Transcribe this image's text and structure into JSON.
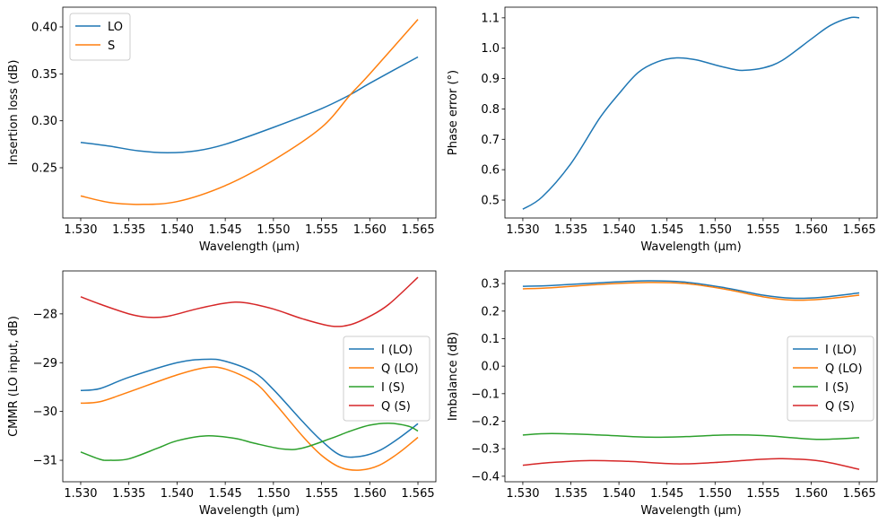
{
  "chart_data": [
    {
      "type": "line",
      "xlabel": "Wavelength (µm)",
      "ylabel": "Insertion loss (dB)",
      "xlim": [
        1.52814,
        1.56686
      ],
      "ylim": [
        0.1965,
        0.421
      ],
      "xticks": [
        "1.530",
        "1.535",
        "1.540",
        "1.545",
        "1.550",
        "1.555",
        "1.560",
        "1.565"
      ],
      "yticks": [
        "0.25",
        "0.30",
        "0.35",
        "0.40"
      ],
      "grid": false,
      "legend": "top-left",
      "series": [
        {
          "name": "LO",
          "color": "#1f77b4",
          "x": [
            1.53,
            1.533,
            1.536,
            1.539,
            1.542,
            1.545,
            1.55,
            1.555,
            1.558,
            1.56,
            1.565
          ],
          "y": [
            0.277,
            0.273,
            0.268,
            0.266,
            0.268,
            0.275,
            0.293,
            0.313,
            0.328,
            0.34,
            0.368
          ]
        },
        {
          "name": "S",
          "color": "#ff7f0e",
          "x": [
            1.53,
            1.533,
            1.536,
            1.54,
            1.545,
            1.55,
            1.555,
            1.558,
            1.56,
            1.565
          ],
          "y": [
            0.22,
            0.213,
            0.211,
            0.214,
            0.231,
            0.258,
            0.293,
            0.328,
            0.35,
            0.408
          ]
        }
      ]
    },
    {
      "type": "line",
      "xlabel": "Wavelength (µm)",
      "ylabel": "Phase error (°)",
      "xlim": [
        1.52814,
        1.56686
      ],
      "ylim": [
        0.441,
        1.135
      ],
      "xticks": [
        "1.530",
        "1.535",
        "1.540",
        "1.545",
        "1.550",
        "1.555",
        "1.560",
        "1.565"
      ],
      "yticks": [
        "0.5",
        "0.6",
        "0.7",
        "0.8",
        "0.9",
        "1.0",
        "1.1"
      ],
      "grid": false,
      "series": [
        {
          "color": "#1f77b4",
          "x": [
            1.53,
            1.532,
            1.535,
            1.538,
            1.54,
            1.542,
            1.544,
            1.546,
            1.548,
            1.55,
            1.552,
            1.553,
            1.555,
            1.557,
            1.56,
            1.562,
            1.564,
            1.565
          ],
          "y": [
            0.47,
            0.51,
            0.62,
            0.77,
            0.85,
            0.92,
            0.955,
            0.968,
            0.962,
            0.945,
            0.93,
            0.927,
            0.935,
            0.96,
            1.03,
            1.075,
            1.1,
            1.1
          ]
        }
      ]
    },
    {
      "type": "line",
      "xlabel": "Wavelength (µm)",
      "ylabel": "CMMR (LO input, dB)",
      "xlim": [
        1.52814,
        1.56686
      ],
      "ylim": [
        -31.44,
        -27.12
      ],
      "xticks": [
        "1.530",
        "1.535",
        "1.540",
        "1.545",
        "1.550",
        "1.555",
        "1.560",
        "1.565"
      ],
      "yticks": [
        "−31",
        "−30",
        "−29",
        "−28"
      ],
      "ytick_values": [
        -31,
        -30,
        -29,
        -28
      ],
      "grid": false,
      "legend": "center-right",
      "series": [
        {
          "name": "I (LO)",
          "color": "#1f77b4",
          "x": [
            1.53,
            1.532,
            1.535,
            1.54,
            1.543,
            1.545,
            1.548,
            1.55,
            1.553,
            1.555,
            1.557,
            1.559,
            1.561,
            1.563,
            1.565
          ],
          "y": [
            -29.57,
            -29.53,
            -29.3,
            -29.0,
            -28.93,
            -28.97,
            -29.2,
            -29.55,
            -30.2,
            -30.6,
            -30.9,
            -30.92,
            -30.8,
            -30.55,
            -30.25
          ]
        },
        {
          "name": "Q (LO)",
          "color": "#ff7f0e",
          "x": [
            1.53,
            1.532,
            1.535,
            1.54,
            1.543,
            1.545,
            1.548,
            1.55,
            1.553,
            1.555,
            1.557,
            1.559,
            1.561,
            1.563,
            1.565
          ],
          "y": [
            -29.83,
            -29.8,
            -29.6,
            -29.25,
            -29.1,
            -29.13,
            -29.4,
            -29.8,
            -30.5,
            -30.9,
            -31.15,
            -31.2,
            -31.1,
            -30.85,
            -30.53
          ]
        },
        {
          "name": "I (S)",
          "color": "#2ca02c",
          "x": [
            1.53,
            1.532,
            1.533,
            1.535,
            1.538,
            1.54,
            1.543,
            1.546,
            1.548,
            1.551,
            1.553,
            1.556,
            1.558,
            1.56,
            1.562,
            1.564,
            1.565
          ],
          "y": [
            -30.83,
            -30.98,
            -31.0,
            -30.97,
            -30.75,
            -30.6,
            -30.5,
            -30.55,
            -30.65,
            -30.77,
            -30.75,
            -30.55,
            -30.4,
            -30.28,
            -30.24,
            -30.3,
            -30.4
          ]
        },
        {
          "name": "Q (S)",
          "color": "#d62728",
          "x": [
            1.53,
            1.532,
            1.535,
            1.537,
            1.539,
            1.542,
            1.545,
            1.547,
            1.55,
            1.553,
            1.556,
            1.558,
            1.56,
            1.562,
            1.565
          ],
          "y": [
            -27.65,
            -27.8,
            -28.0,
            -28.07,
            -28.05,
            -27.9,
            -27.78,
            -27.77,
            -27.9,
            -28.1,
            -28.25,
            -28.22,
            -28.05,
            -27.8,
            -27.25
          ]
        }
      ]
    },
    {
      "type": "line",
      "xlabel": "Wavelength (µm)",
      "ylabel": "Imbalance (dB)",
      "xlim": [
        1.52814,
        1.56686
      ],
      "ylim": [
        -0.42,
        0.346
      ],
      "xticks": [
        "1.530",
        "1.535",
        "1.540",
        "1.545",
        "1.550",
        "1.555",
        "1.560",
        "1.565"
      ],
      "yticks": [
        "−0.4",
        "−0.3",
        "−0.2",
        "−0.1",
        "0.0",
        "0.1",
        "0.2",
        "0.3"
      ],
      "ytick_values": [
        -0.4,
        -0.3,
        -0.2,
        -0.1,
        0.0,
        0.1,
        0.2,
        0.3
      ],
      "grid": false,
      "legend": "center-right",
      "series": [
        {
          "name": "I (LO)",
          "color": "#1f77b4",
          "x": [
            1.53,
            1.533,
            1.538,
            1.543,
            1.547,
            1.551,
            1.555,
            1.558,
            1.561,
            1.565
          ],
          "y": [
            0.29,
            0.293,
            0.303,
            0.31,
            0.305,
            0.285,
            0.258,
            0.247,
            0.25,
            0.266
          ]
        },
        {
          "name": "Q (LO)",
          "color": "#ff7f0e",
          "x": [
            1.53,
            1.533,
            1.538,
            1.543,
            1.547,
            1.551,
            1.555,
            1.558,
            1.561,
            1.565
          ],
          "y": [
            0.281,
            0.285,
            0.297,
            0.304,
            0.3,
            0.28,
            0.252,
            0.24,
            0.243,
            0.258
          ]
        },
        {
          "name": "I (S)",
          "color": "#2ca02c",
          "x": [
            1.53,
            1.533,
            1.538,
            1.543,
            1.547,
            1.551,
            1.555,
            1.558,
            1.561,
            1.565
          ],
          "y": [
            -0.25,
            -0.245,
            -0.25,
            -0.258,
            -0.256,
            -0.25,
            -0.252,
            -0.26,
            -0.266,
            -0.26
          ]
        },
        {
          "name": "Q (S)",
          "color": "#d62728",
          "x": [
            1.53,
            1.533,
            1.537,
            1.541,
            1.546,
            1.55,
            1.554,
            1.557,
            1.561,
            1.565
          ],
          "y": [
            -0.36,
            -0.35,
            -0.343,
            -0.346,
            -0.355,
            -0.35,
            -0.34,
            -0.336,
            -0.345,
            -0.375
          ]
        }
      ]
    }
  ]
}
